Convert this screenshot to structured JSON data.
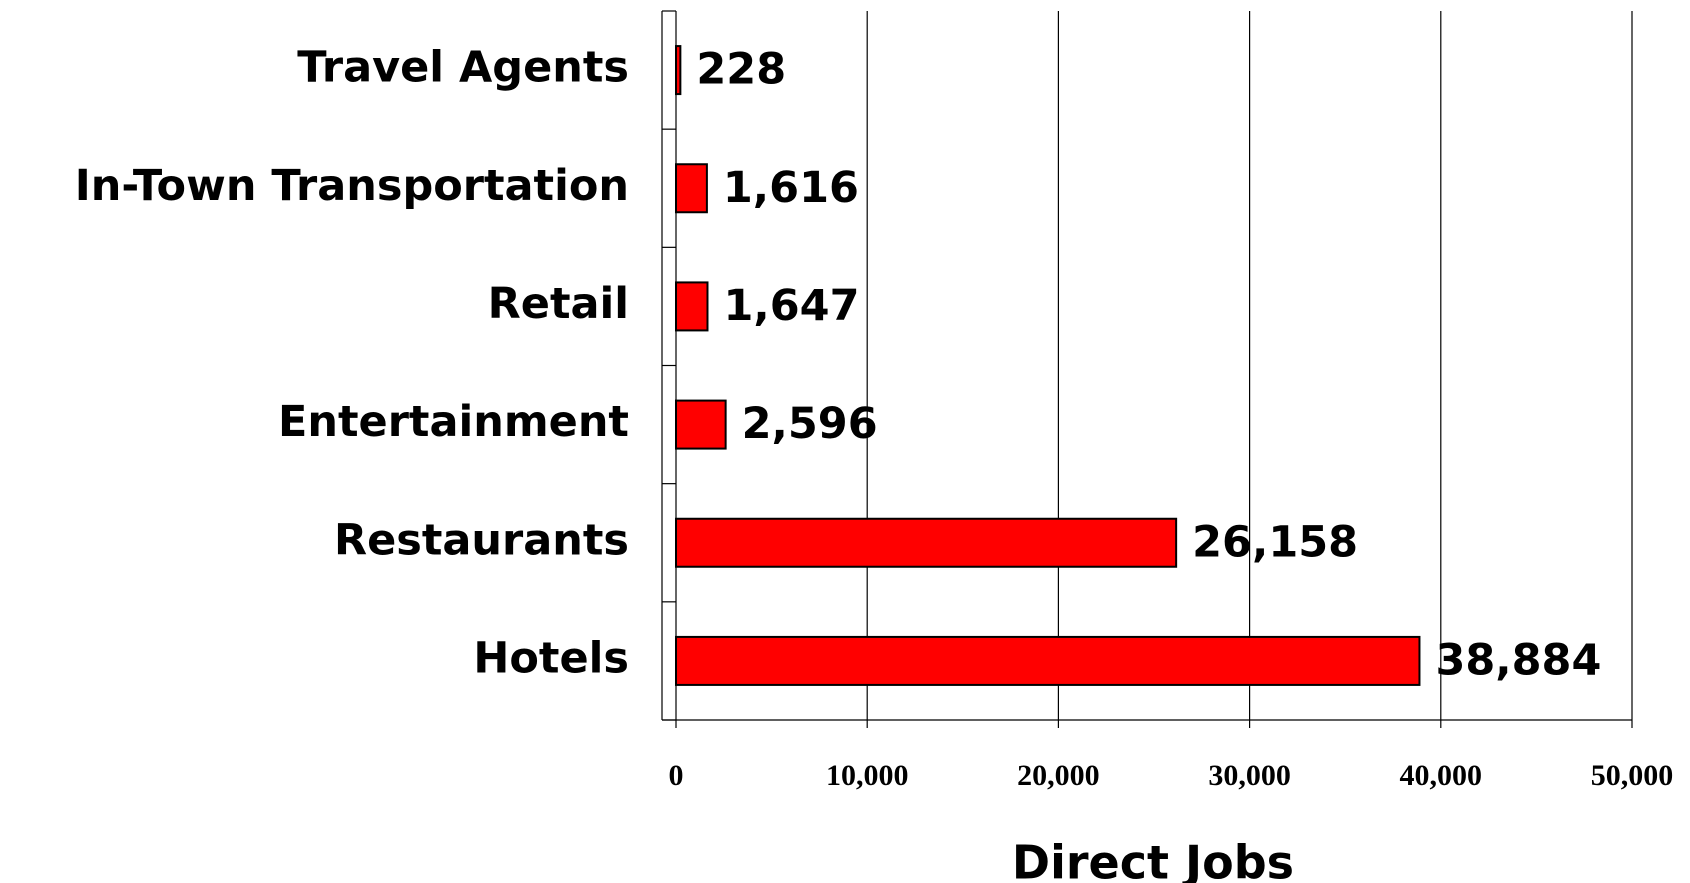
{
  "chart_data": {
    "type": "bar",
    "orientation": "horizontal",
    "x_label": "Direct Jobs",
    "categories": [
      "Travel Agents",
      "In-Town Transportation",
      "Retail",
      "Entertainment",
      "Restaurants",
      "Hotels"
    ],
    "values": [
      228,
      1616,
      1647,
      2596,
      26158,
      38884
    ],
    "value_labels": [
      "228",
      "1,616",
      "1,647",
      "2,596",
      "26,158",
      "38,884"
    ],
    "color": "#ff0000",
    "xlim": [
      0,
      50000
    ],
    "xticks": [
      0,
      {
        "value": 10000,
        "label": "10,000"
      },
      {
        "value": 20000,
        "label": "20,000"
      },
      {
        "value": 30000,
        "label": "30,000"
      },
      {
        "value": 40000,
        "label": "40,000"
      },
      {
        "value": 50000,
        "label": "50,000"
      }
    ],
    "grid": true
  }
}
